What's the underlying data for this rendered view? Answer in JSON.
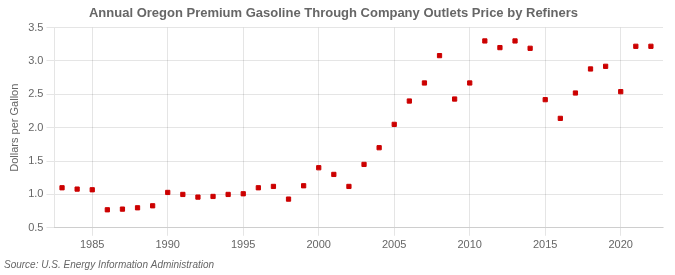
{
  "chart_data": {
    "type": "scatter",
    "title": "Annual Oregon Premium Gasoline Through Company Outlets Price by Refiners",
    "ylabel": "Dollars per Gallon",
    "source": "Source: U.S. Energy Information Administration",
    "color": "#cc0000",
    "marker": "square",
    "grid": true,
    "xlim": [
      1982.5,
      2022.8
    ],
    "ylim": [
      0.5,
      3.5
    ],
    "xticks": [
      1985,
      1990,
      1995,
      2000,
      2005,
      2010,
      2015,
      2020
    ],
    "yticks": [
      0.5,
      {
        "value": 1,
        "label": "1.0"
      },
      1.5,
      {
        "value": 2,
        "label": "2.0"
      },
      2.5,
      {
        "value": 3,
        "label": "3.0"
      },
      3.5
    ],
    "x": [
      1983,
      1984,
      1985,
      1986,
      1987,
      1988,
      1989,
      1990,
      1991,
      1992,
      1993,
      1994,
      1995,
      1996,
      1997,
      1998,
      1999,
      2000,
      2001,
      2002,
      2003,
      2004,
      2005,
      2006,
      2007,
      2008,
      2009,
      2010,
      2011,
      2012,
      2013,
      2014,
      2015,
      2016,
      2017,
      2018,
      2019,
      2020,
      2021,
      2022
    ],
    "values": [
      1.1,
      1.08,
      1.07,
      0.77,
      0.78,
      0.8,
      0.83,
      1.03,
      1.0,
      0.96,
      0.97,
      1.0,
      1.01,
      1.1,
      1.12,
      0.93,
      1.13,
      1.4,
      1.3,
      1.12,
      1.45,
      1.7,
      2.05,
      2.4,
      2.67,
      3.08,
      2.43,
      2.67,
      3.3,
      3.2,
      3.3,
      3.19,
      2.42,
      2.14,
      2.52,
      2.88,
      2.92,
      2.54,
      3.22,
      3.22
    ]
  }
}
